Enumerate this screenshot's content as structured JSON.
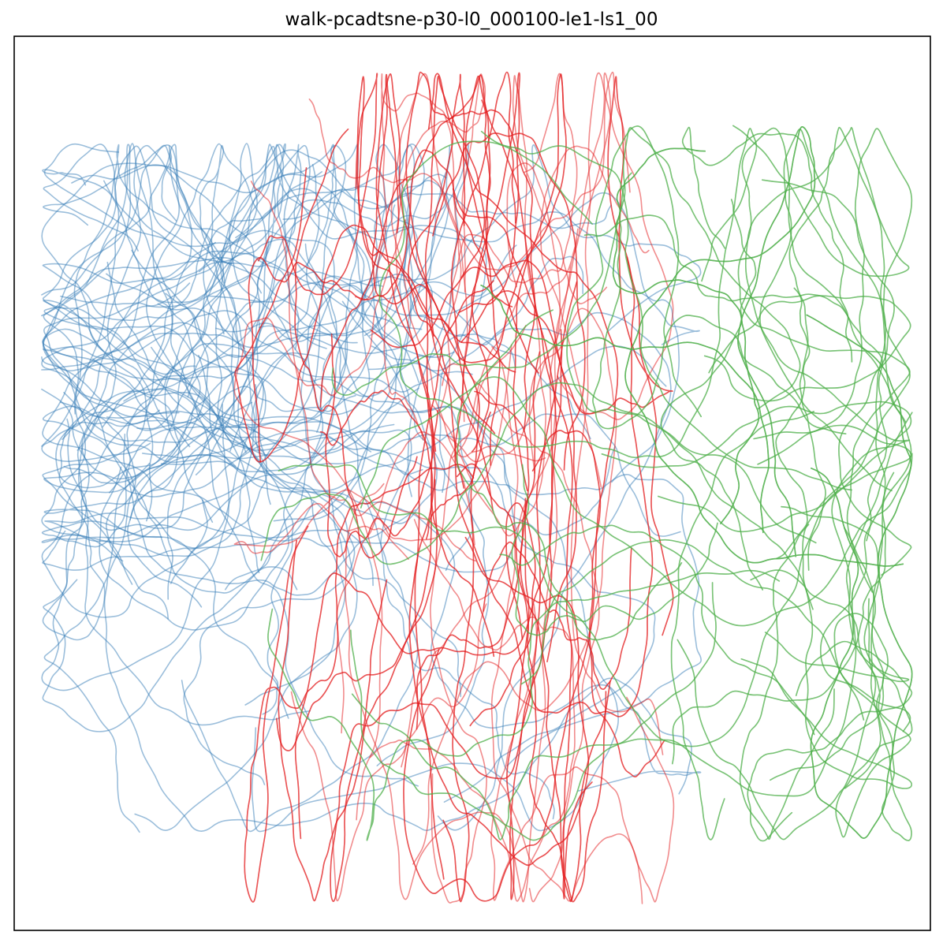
{
  "chart_data": {
    "type": "line",
    "title": "walk-pcadtsne-p30-l0_000100-le1-ls1_00",
    "xlabel": "",
    "ylabel": "",
    "xticks": [],
    "yticks": [],
    "xlim": [
      0,
      100
    ],
    "ylim": [
      0,
      100
    ],
    "grid": false,
    "legend": "none",
    "line_opacity": 0.5,
    "series": [
      {
        "color": "#377eb8",
        "trajectory_count": 80,
        "x_range": [
          3,
          75
        ],
        "y_range": [
          11,
          88
        ],
        "densest_region": {
          "x": [
            12,
            25
          ],
          "y": [
            55,
            75
          ]
        }
      },
      {
        "color": "#e41a1c",
        "trajectory_count": 90,
        "x_range": [
          24,
          72
        ],
        "y_range": [
          3,
          96
        ],
        "densest_region": {
          "x": [
            44,
            58
          ],
          "y": [
            40,
            75
          ]
        }
      },
      {
        "color": "#4daf4a",
        "trajectory_count": 80,
        "x_range": [
          15,
          98
        ],
        "y_range": [
          10,
          90
        ],
        "densest_region": {
          "x": [
            78,
            92
          ],
          "y": [
            30,
            60
          ]
        }
      }
    ]
  }
}
